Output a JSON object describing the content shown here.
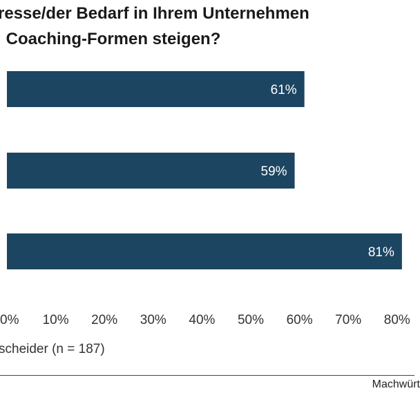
{
  "title_lines": [
    "resse/der Bedarf in Ihrem Unternehmen",
    " Coaching-Formen steigen?"
  ],
  "source_note": "scheider (n = 187)",
  "brand": "Machwürt",
  "colors": {
    "bar": "#1c4562",
    "label": "#ffffff",
    "axis_text": "#333333"
  },
  "chart_data": {
    "type": "bar",
    "orientation": "horizontal",
    "title": "",
    "xlabel": "",
    "ylabel": "",
    "categories": [
      "",
      "",
      ""
    ],
    "values": [
      61,
      59,
      81
    ],
    "value_labels": [
      "61%",
      "59%",
      "81%"
    ],
    "xlim": [
      0,
      80
    ],
    "x_ticks": [
      "0%",
      "10%",
      "20%",
      "30%",
      "40%",
      "50%",
      "60%",
      "70%",
      "80%"
    ],
    "grid": false,
    "legend": "none"
  }
}
